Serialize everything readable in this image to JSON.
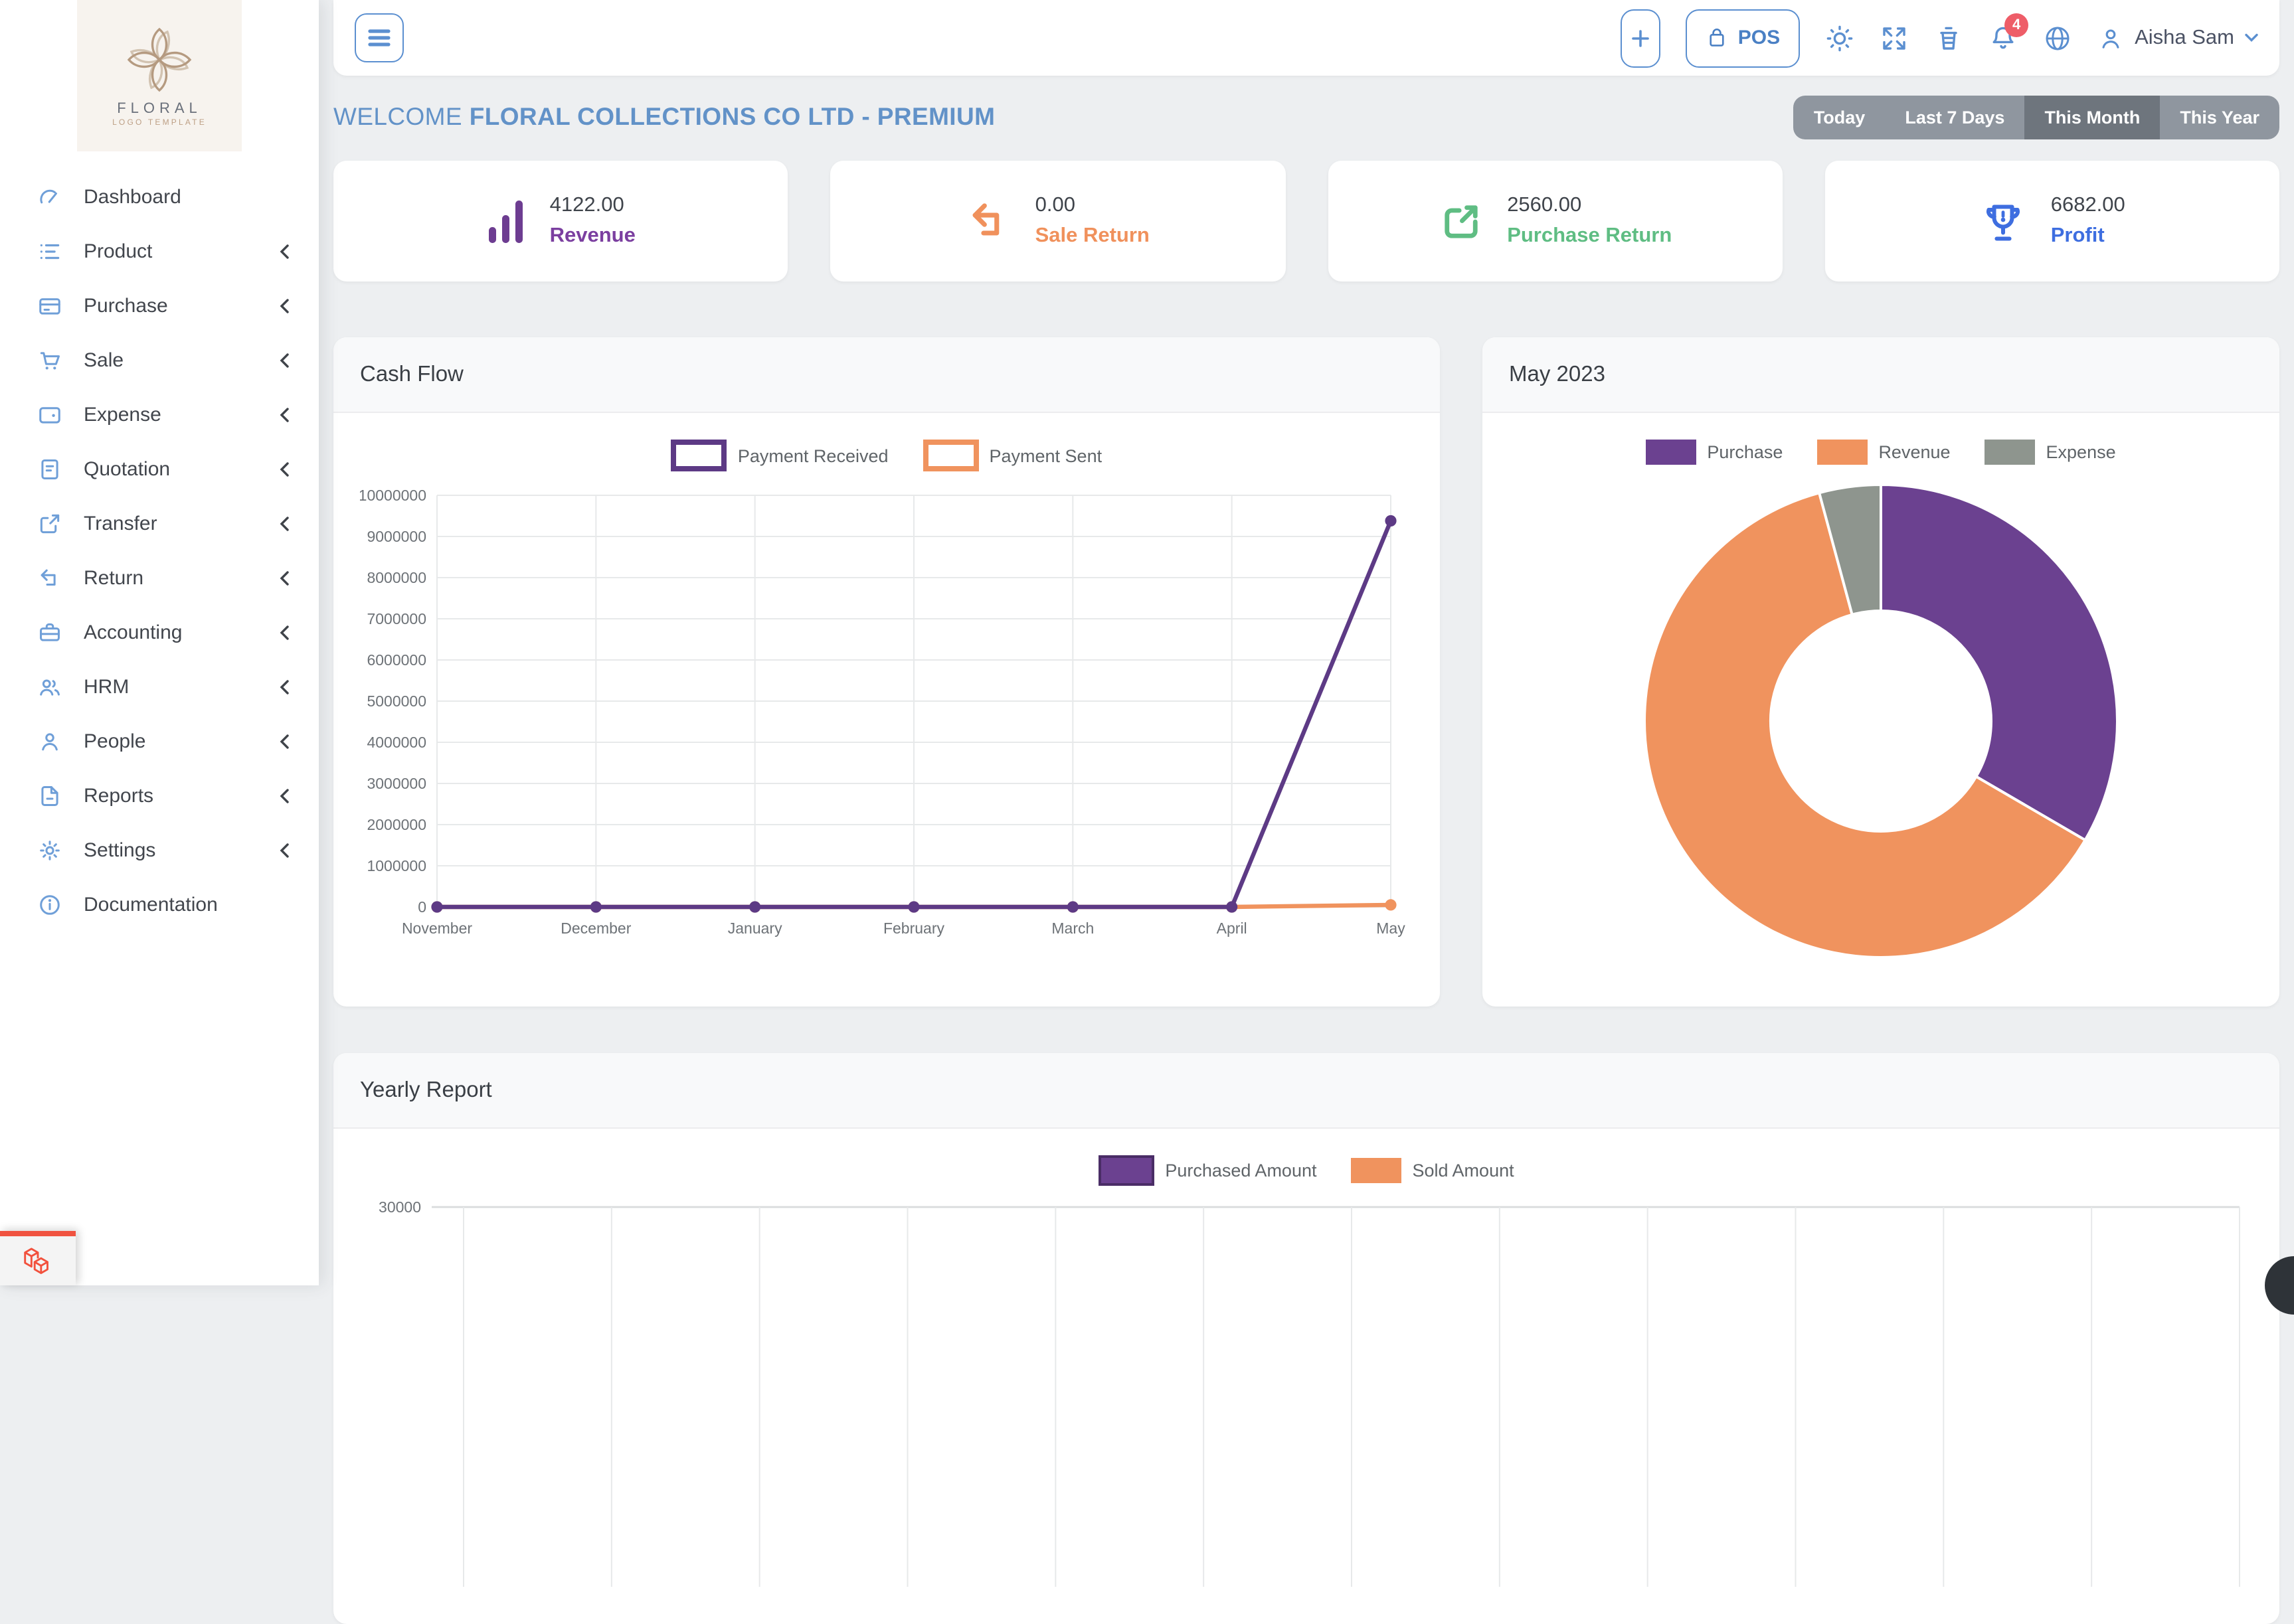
{
  "brand": {
    "name": "FLORAL",
    "subtitle": "LOGO TEMPLATE"
  },
  "sidebar": {
    "items": [
      {
        "label": "Dashboard",
        "icon": "gauge-icon",
        "has_submenu": false
      },
      {
        "label": "Product",
        "icon": "list-icon",
        "has_submenu": true
      },
      {
        "label": "Purchase",
        "icon": "credit-card-icon",
        "has_submenu": true
      },
      {
        "label": "Sale",
        "icon": "cart-icon",
        "has_submenu": true
      },
      {
        "label": "Expense",
        "icon": "wallet-icon",
        "has_submenu": true
      },
      {
        "label": "Quotation",
        "icon": "document-icon",
        "has_submenu": true
      },
      {
        "label": "Transfer",
        "icon": "share-arrow-icon",
        "has_submenu": true
      },
      {
        "label": "Return",
        "icon": "return-arrow-icon",
        "has_submenu": true
      },
      {
        "label": "Accounting",
        "icon": "briefcase-icon",
        "has_submenu": true
      },
      {
        "label": "HRM",
        "icon": "users-icon",
        "has_submenu": true
      },
      {
        "label": "People",
        "icon": "user-icon",
        "has_submenu": true
      },
      {
        "label": "Reports",
        "icon": "report-file-icon",
        "has_submenu": true
      },
      {
        "label": "Settings",
        "icon": "gear-icon",
        "has_submenu": true
      },
      {
        "label": "Documentation",
        "icon": "info-icon",
        "has_submenu": false
      }
    ]
  },
  "header": {
    "pos_button": "POS",
    "notification_count": "4",
    "user_name": "Aisha Sam"
  },
  "welcome": {
    "prefix": "WELCOME",
    "company": "FLORAL COLLECTIONS CO LTD - PREMIUM"
  },
  "time_filters": {
    "options": [
      "Today",
      "Last 7 Days",
      "This Month",
      "This Year"
    ],
    "active": "This Month"
  },
  "stat_cards": [
    {
      "value": "4122.00",
      "label": "Revenue",
      "accent": "#7b3fa0",
      "icon": "bar-chart-icon"
    },
    {
      "value": "0.00",
      "label": "Sale Return",
      "accent": "#f0915c",
      "icon": "corner-up-left-icon"
    },
    {
      "value": "2560.00",
      "label": "Purchase Return",
      "accent": "#5fbd83",
      "icon": "share-box-icon"
    },
    {
      "value": "6682.00",
      "label": "Profit",
      "accent": "#3e6ee0",
      "icon": "trophy-icon"
    }
  ],
  "panels": {
    "cash_flow_title": "Cash Flow",
    "monthly_title": "May 2023",
    "yearly_title": "Yearly Report"
  },
  "chart_data": [
    {
      "id": "cash_flow",
      "type": "line",
      "title": "Cash Flow",
      "x": [
        "November",
        "December",
        "January",
        "February",
        "March",
        "April",
        "May"
      ],
      "series": [
        {
          "name": "Payment Received",
          "color": "#5d3a85",
          "values": [
            0,
            0,
            0,
            0,
            0,
            0,
            9380000
          ]
        },
        {
          "name": "Payment Sent",
          "color": "#f0935e",
          "values": [
            0,
            0,
            0,
            0,
            0,
            0,
            50000
          ]
        }
      ],
      "ylim": [
        0,
        10000000
      ],
      "ytick_step": 1000000,
      "grid": true,
      "legend_position": "top"
    },
    {
      "id": "may_2023",
      "type": "pie",
      "title": "May 2023",
      "donut": true,
      "labels": [
        "Purchase",
        "Revenue",
        "Expense"
      ],
      "values_percent": [
        33.4,
        62.4,
        4.2
      ],
      "colors": [
        "#6b4190",
        "#f0935e",
        "#8e958e"
      ],
      "legend_position": "top"
    },
    {
      "id": "yearly_report",
      "type": "bar",
      "title": "Yearly Report",
      "series": [
        {
          "name": "Purchased Amount",
          "color": "#6b4190",
          "border_color": "#4a2d66"
        },
        {
          "name": "Sold Amount",
          "color": "#f0935e"
        }
      ],
      "y_top_tick": "30000",
      "month_gridlines": 13,
      "visible_note": "only top of plot visible; chart cut off at viewport bottom",
      "grid": true,
      "legend_position": "top"
    }
  ]
}
